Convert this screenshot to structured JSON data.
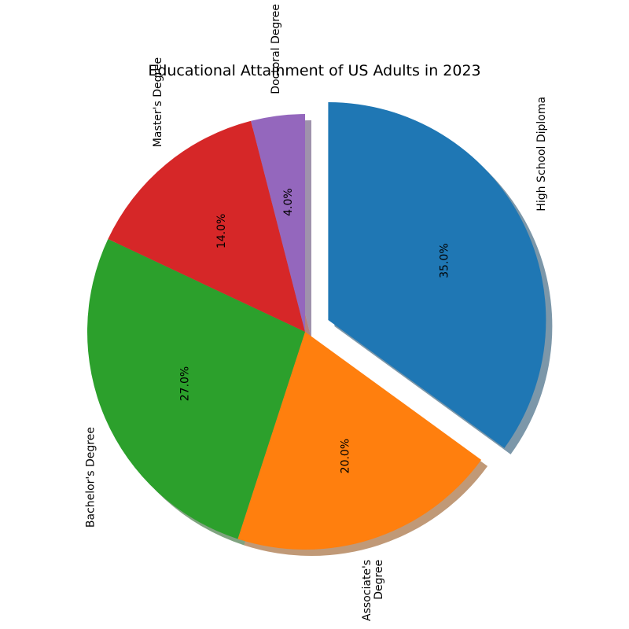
{
  "chart_data": {
    "type": "pie",
    "title": "Educational Attainment of US Adults in 2023",
    "categories": [
      "High School Diploma",
      "Associate's Degree",
      "Bachelor's Degree",
      "Master's Degree",
      "Doctoral Degree"
    ],
    "category_lines": [
      [
        "High School Diploma"
      ],
      [
        "Associate's",
        "Degree"
      ],
      [
        "Bachelor's Degree"
      ],
      [
        "Master's Degree"
      ],
      [
        "Doctoral Degree"
      ]
    ],
    "values": [
      35.0,
      20.0,
      27.0,
      14.0,
      4.0
    ],
    "value_labels": [
      "35.0%",
      "20.0%",
      "27.0%",
      "14.0%",
      "4.0%"
    ],
    "colors": [
      "#1f77b4",
      "#ff7f0e",
      "#2ca02c",
      "#d62728",
      "#9467bd"
    ],
    "exploded": [
      "High School Diploma"
    ],
    "shadow": true,
    "start_angle_deg": 90,
    "direction": "clockwise"
  }
}
